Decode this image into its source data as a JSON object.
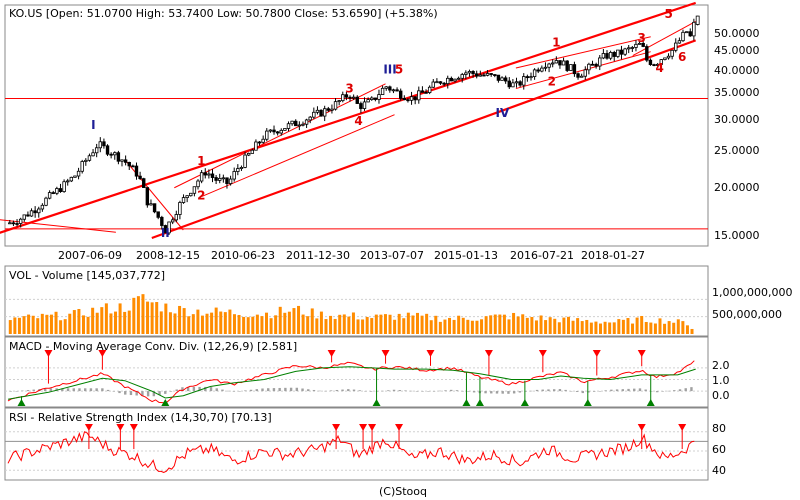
{
  "price_panel": {
    "header": "KO.US [Open: 51.0700   High: 53.7400   Low: 50.7800   Close: 53.6590]  (+5.38%)",
    "y_ticks": [
      "50.0000",
      "45.0000",
      "40.0000",
      "35.0000",
      "30.0000",
      "25.0000",
      "20.0000",
      "15.0000"
    ],
    "x_ticks": [
      "2007-06-09",
      "2008-12-15",
      "2010-06-23",
      "2011-12-30",
      "2013-07-07",
      "2015-01-13",
      "2016-07-21",
      "2018-01-27"
    ],
    "wave_labels": [
      "I",
      "II",
      "III",
      "IV",
      "1",
      "2",
      "3",
      "4",
      "5",
      "1",
      "2",
      "3",
      "4",
      "5",
      "6"
    ]
  },
  "volume_panel": {
    "header": "VOL - Volume [145,037,772]",
    "y_ticks": [
      "1,000,000,000",
      "500,000,000"
    ]
  },
  "macd_panel": {
    "header": "MACD - Moving Average Conv. Div. (12,26,9) [2.581]",
    "y_ticks": [
      "2.0",
      "1.0",
      "0.0"
    ]
  },
  "rsi_panel": {
    "header": "RSI - Relative Strength Index (14,30,70) [70.13]",
    "y_ticks": [
      "80",
      "60",
      "40"
    ]
  },
  "footer": "(C)Stooq",
  "colors": {
    "candle": "#000000",
    "volume": "#ff8c00",
    "macd_line": "#ff0000",
    "signal_line": "#008000",
    "histogram": "#a0a0a0",
    "rsi_line": "#ff0000",
    "channel": "#ff0000",
    "marker_sell": "#ff0000",
    "marker_buy": "#008000",
    "wave_major": "#1e1e96",
    "wave_minor": "#dd0000"
  },
  "chart_data": [
    {
      "type": "candlestick",
      "title": "KO.US",
      "y_scale": "log",
      "ylim": [
        14.5,
        54
      ],
      "x_range": [
        "2006-04-01",
        "2019-01-10"
      ],
      "ohlc_last": {
        "open": 51.07,
        "high": 53.74,
        "low": 50.78,
        "close": 53.659,
        "change_pct": 5.38
      },
      "close_path": [
        [
          "2006-04",
          15.8
        ],
        [
          "2006-07",
          16.3
        ],
        [
          "2006-10",
          17.2
        ],
        [
          "2007-01",
          18.4
        ],
        [
          "2007-04",
          19.6
        ],
        [
          "2007-07",
          21.0
        ],
        [
          "2007-10",
          23.5
        ],
        [
          "2007-12",
          25.2
        ],
        [
          "2008-03",
          24.0
        ],
        [
          "2008-06",
          22.8
        ],
        [
          "2008-09",
          21.0
        ],
        [
          "2008-11",
          18.0
        ],
        [
          "2009-02",
          16.0
        ],
        [
          "2009-03",
          15.2
        ],
        [
          "2009-06",
          17.5
        ],
        [
          "2009-09",
          19.5
        ],
        [
          "2009-12",
          21.5
        ],
        [
          "2010-02",
          20.5
        ],
        [
          "2010-05",
          20.0
        ],
        [
          "2010-07",
          21.8
        ],
        [
          "2010-10",
          24.0
        ],
        [
          "2011-01",
          26.5
        ],
        [
          "2011-04",
          27.5
        ],
        [
          "2011-08",
          28.5
        ],
        [
          "2011-11",
          29.5
        ],
        [
          "2012-02",
          30.5
        ],
        [
          "2012-05",
          32.0
        ],
        [
          "2012-08",
          34.0
        ],
        [
          "2012-10",
          31.5
        ],
        [
          "2013-01",
          32.5
        ],
        [
          "2013-04",
          35.5
        ],
        [
          "2013-07",
          34.0
        ],
        [
          "2013-10",
          33.0
        ],
        [
          "2014-01",
          34.5
        ],
        [
          "2014-04",
          36.5
        ],
        [
          "2014-07",
          37.5
        ],
        [
          "2014-10",
          38.5
        ],
        [
          "2015-01",
          38.0
        ],
        [
          "2015-04",
          37.5
        ],
        [
          "2015-07",
          36.5
        ],
        [
          "2015-09",
          35.5
        ],
        [
          "2015-11",
          37.0
        ],
        [
          "2016-03",
          40.5
        ],
        [
          "2016-06",
          41.5
        ],
        [
          "2016-09",
          39.5
        ],
        [
          "2016-11",
          38.0
        ],
        [
          "2017-02",
          40.0
        ],
        [
          "2017-05",
          42.5
        ],
        [
          "2017-08",
          43.0
        ],
        [
          "2017-11",
          44.5
        ],
        [
          "2018-01",
          45.5
        ],
        [
          "2018-02",
          41.5
        ],
        [
          "2018-04",
          40.5
        ],
        [
          "2018-06",
          42.5
        ],
        [
          "2018-08",
          44.0
        ],
        [
          "2018-10",
          47.5
        ],
        [
          "2018-11",
          49.0
        ],
        [
          "2018-12",
          47.0
        ],
        [
          "2019-01",
          53.66
        ]
      ],
      "levels": [
        33.0,
        15.3
      ]
    },
    {
      "type": "bar",
      "title": "VOL - Volume",
      "last_value": 145037772,
      "ylim": [
        0,
        1500000000
      ],
      "monthly_profile": [
        [
          "2006-04",
          430000000
        ],
        [
          "2007-01",
          500000000
        ],
        [
          "2007-07",
          560000000
        ],
        [
          "2008-01",
          720000000
        ],
        [
          "2008-06",
          780000000
        ],
        [
          "2008-10",
          1000000000
        ],
        [
          "2009-01",
          850000000
        ],
        [
          "2009-06",
          700000000
        ],
        [
          "2010-01",
          640000000
        ],
        [
          "2010-06",
          620000000
        ],
        [
          "2011-01",
          580000000
        ],
        [
          "2011-08",
          700000000
        ],
        [
          "2012-01",
          560000000
        ],
        [
          "2012-08",
          520000000
        ],
        [
          "2013-01",
          480000000
        ],
        [
          "2013-07",
          520000000
        ],
        [
          "2014-01",
          480000000
        ],
        [
          "2014-07",
          440000000
        ],
        [
          "2015-01",
          470000000
        ],
        [
          "2015-08",
          520000000
        ],
        [
          "2016-01",
          470000000
        ],
        [
          "2016-07",
          420000000
        ],
        [
          "2017-01",
          380000000
        ],
        [
          "2017-07",
          340000000
        ],
        [
          "2018-01",
          420000000
        ],
        [
          "2018-07",
          380000000
        ],
        [
          "2018-12",
          300000000
        ],
        [
          "2019-01",
          145037772
        ]
      ]
    },
    {
      "type": "line",
      "title": "MACD - Moving Average Conv. Div.",
      "params": [
        12,
        26,
        9
      ],
      "last_value": 2.581,
      "ylim": [
        -1.2,
        3.2
      ],
      "series": [
        {
          "name": "MACD",
          "x": [
            "2006-04",
            "2007-01",
            "2007-08",
            "2008-01",
            "2008-06",
            "2008-12",
            "2009-03",
            "2009-07",
            "2010-01",
            "2010-06",
            "2011-01",
            "2011-08",
            "2012-02",
            "2012-08",
            "2013-01",
            "2013-06",
            "2014-01",
            "2014-07",
            "2015-01",
            "2015-08",
            "2016-02",
            "2016-07",
            "2016-12",
            "2017-06",
            "2018-01",
            "2018-04",
            "2018-09",
            "2019-01"
          ],
          "values": [
            -0.8,
            0.3,
            1.0,
            1.5,
            0.4,
            -0.8,
            -1.0,
            0.2,
            1.0,
            0.6,
            1.4,
            2.2,
            2.0,
            2.4,
            1.9,
            2.1,
            1.8,
            2.0,
            1.2,
            0.6,
            1.2,
            1.6,
            0.8,
            1.2,
            1.8,
            1.2,
            1.6,
            2.581
          ]
        },
        {
          "name": "Signal",
          "x": [
            "2006-04",
            "2007-01",
            "2007-08",
            "2008-01",
            "2008-06",
            "2008-12",
            "2009-03",
            "2009-07",
            "2010-01",
            "2010-06",
            "2011-01",
            "2011-08",
            "2012-02",
            "2012-08",
            "2013-01",
            "2013-06",
            "2014-01",
            "2014-07",
            "2015-01",
            "2015-08",
            "2016-02",
            "2016-07",
            "2016-12",
            "2017-06",
            "2018-01",
            "2018-04",
            "2018-09",
            "2019-01"
          ],
          "values": [
            -0.7,
            -0.1,
            0.6,
            1.1,
            0.9,
            0.0,
            -0.6,
            -0.4,
            0.4,
            0.7,
            1.0,
            1.7,
            2.0,
            2.1,
            2.0,
            1.9,
            1.9,
            1.8,
            1.5,
            1.0,
            1.0,
            1.3,
            1.1,
            1.0,
            1.4,
            1.4,
            1.4,
            1.9
          ]
        }
      ],
      "sell_signals": [
        "2007-01",
        "2008-01",
        "2012-04",
        "2013-04",
        "2014-02",
        "2015-03",
        "2016-03",
        "2017-03",
        "2018-01"
      ],
      "buy_signals": [
        "2006-07",
        "2009-03",
        "2013-02",
        "2014-10",
        "2015-01",
        "2015-11",
        "2017-01",
        "2018-03"
      ]
    },
    {
      "type": "line",
      "title": "RSI - Relative Strength Index",
      "params": [
        14,
        30,
        70
      ],
      "last_value": 70.13,
      "ylim": [
        32,
        88
      ],
      "series": [
        {
          "name": "RSI",
          "x": [
            "2006-04",
            "2006-10",
            "2007-04",
            "2007-10",
            "2008-03",
            "2008-08",
            "2008-12",
            "2009-03",
            "2009-08",
            "2010-01",
            "2010-06",
            "2011-01",
            "2011-06",
            "2012-01",
            "2012-06",
            "2012-10",
            "2013-04",
            "2013-10",
            "2014-04",
            "2014-10",
            "2015-04",
            "2015-10",
            "2016-04",
            "2016-10",
            "2017-04",
            "2017-10",
            "2018-01",
            "2018-06",
            "2018-10",
            "2019-01"
          ],
          "values": [
            52,
            60,
            68,
            76,
            62,
            55,
            45,
            42,
            58,
            62,
            50,
            60,
            56,
            62,
            72,
            55,
            72,
            52,
            60,
            50,
            56,
            48,
            62,
            52,
            58,
            64,
            74,
            52,
            60,
            70.13
          ]
        }
      ],
      "sell_signals": [
        "2007-10",
        "2008-05",
        "2008-08",
        "2012-05",
        "2012-11",
        "2013-01",
        "2013-07",
        "2018-01",
        "2018-10"
      ]
    }
  ]
}
